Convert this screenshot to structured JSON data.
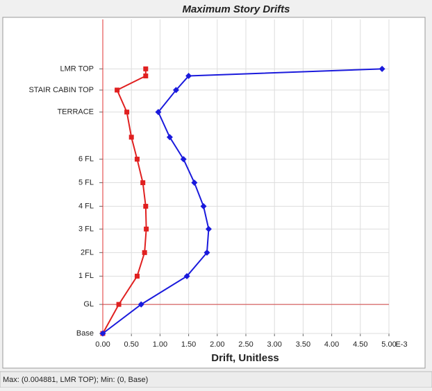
{
  "chart_data": {
    "type": "line",
    "title": "Maximum Story Drifts",
    "x_label": "Drift, Unitless",
    "x_scale_label": "E-3",
    "status_text": "Max: (0.004881, LMR TOP);   Min: (0, Base)",
    "xlim": [
      0,
      5
    ],
    "xticks": [
      {
        "value": 0,
        "label": "0.00"
      },
      {
        "value": 0.5,
        "label": "0.50"
      },
      {
        "value": 1,
        "label": "1.00"
      },
      {
        "value": 1.5,
        "label": "1.50"
      },
      {
        "value": 2,
        "label": "2.00"
      },
      {
        "value": 2.5,
        "label": "2.50"
      },
      {
        "value": 3,
        "label": "3.00"
      },
      {
        "value": 3.5,
        "label": "3.50"
      },
      {
        "value": 4,
        "label": "4.00"
      },
      {
        "value": 4.5,
        "label": "4.50"
      },
      {
        "value": 5,
        "label": "5.00"
      }
    ],
    "ylim": [
      0,
      40
    ],
    "yticks": [
      {
        "value": 0,
        "label": "Base"
      },
      {
        "value": 3.7,
        "label": "GL"
      },
      {
        "value": 7.3,
        "label": "1 FL"
      },
      {
        "value": 10.3,
        "label": "2FL"
      },
      {
        "value": 13.3,
        "label": "3 FL"
      },
      {
        "value": 16.2,
        "label": "4 FL"
      },
      {
        "value": 19.2,
        "label": "5 FL"
      },
      {
        "value": 22.2,
        "label": "6 FL"
      },
      {
        "value": 28.2,
        "label": "TERRACE"
      },
      {
        "value": 31.0,
        "label": "STAIR CABIN TOP"
      },
      {
        "value": 33.7,
        "label": "LMR TOP"
      }
    ],
    "grid": true,
    "y": [
      0,
      3.7,
      7.3,
      10.3,
      13.3,
      16.2,
      19.2,
      22.2,
      25.0,
      28.2,
      31.0,
      32.8,
      33.7
    ],
    "series": [
      {
        "color": "#e02020",
        "marker": "square",
        "values": [
          0,
          0.28,
          0.6,
          0.73,
          0.76,
          0.75,
          0.7,
          0.6,
          0.5,
          0.42,
          0.25,
          0.75,
          0.75
        ]
      },
      {
        "color": "#1a1adc",
        "marker": "diamond",
        "values": [
          0,
          0.67,
          1.47,
          1.82,
          1.85,
          1.76,
          1.6,
          1.41,
          1.17,
          0.97,
          1.28,
          1.5,
          4.88
        ]
      }
    ]
  }
}
